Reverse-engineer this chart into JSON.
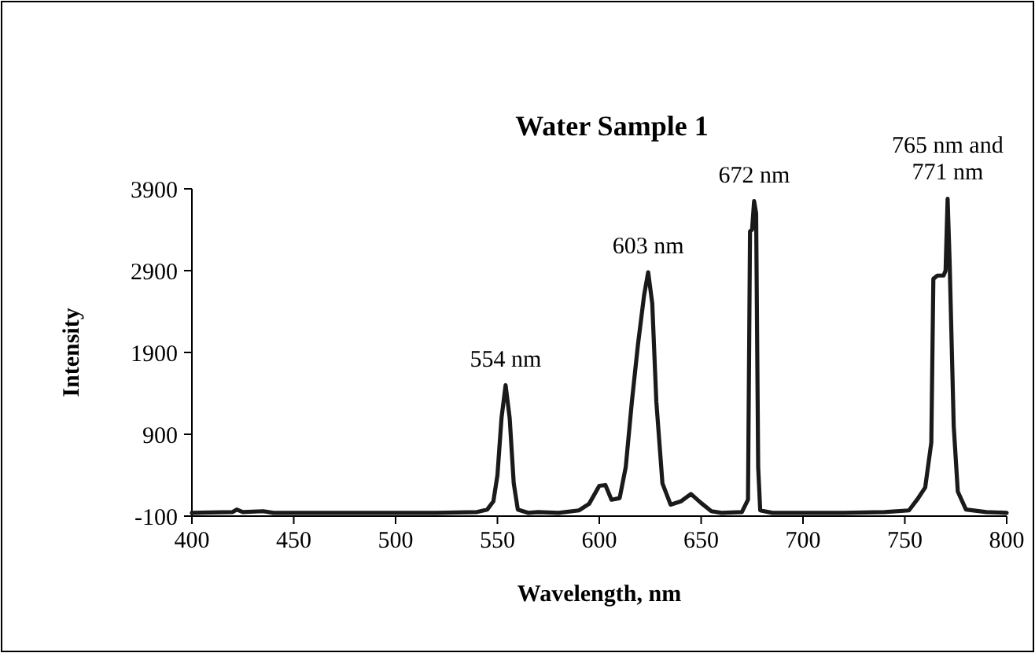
{
  "chart_data": {
    "type": "line",
    "title": "Water Sample 1",
    "xlabel": "Wavelength, nm",
    "ylabel": "Intensity",
    "xlim": [
      400,
      800
    ],
    "xticks": [
      400,
      450,
      500,
      550,
      600,
      650,
      700,
      750,
      800
    ],
    "ylim": [
      -100,
      3900
    ],
    "yticks": [
      -100,
      900,
      1900,
      2900,
      3900
    ],
    "grid": false,
    "marker": "none",
    "line_style": "solid",
    "series": [
      {
        "color": "#1a1a1a",
        "x": [
          400,
          420,
          422,
          425,
          435,
          440,
          460,
          480,
          500,
          520,
          540,
          545,
          548,
          550,
          552,
          554,
          556,
          558,
          560,
          565,
          570,
          580,
          590,
          595,
          600,
          603,
          606,
          610,
          613,
          616,
          619,
          622,
          624,
          626,
          628,
          631,
          635,
          640,
          645,
          650,
          655,
          660,
          670,
          673,
          674,
          675,
          676,
          677,
          678,
          679,
          685,
          700,
          720,
          740,
          752,
          756,
          760,
          763,
          764,
          766,
          769,
          770,
          771,
          772,
          774,
          776,
          780,
          790,
          800
        ],
        "values": [
          -60,
          -50,
          -20,
          -50,
          -40,
          -60,
          -60,
          -60,
          -60,
          -60,
          -50,
          -20,
          80,
          400,
          1100,
          1500,
          1100,
          300,
          -20,
          -60,
          -50,
          -60,
          -30,
          50,
          270,
          280,
          100,
          120,
          500,
          1300,
          2000,
          2600,
          2880,
          2500,
          1300,
          300,
          40,
          80,
          170,
          60,
          -40,
          -60,
          -50,
          100,
          3380,
          3400,
          3750,
          3600,
          500,
          -30,
          -60,
          -60,
          -60,
          -50,
          -30,
          100,
          250,
          800,
          2800,
          2840,
          2840,
          2900,
          3780,
          3000,
          1000,
          200,
          -20,
          -50,
          -60
        ]
      }
    ],
    "annotations": [
      {
        "text": "554 nm",
        "x": 554,
        "y": 1500
      },
      {
        "text": "603 nm",
        "x": 624,
        "y": 2880
      },
      {
        "text": "672 nm",
        "x": 676,
        "y": 3750
      },
      {
        "text": "765 nm and 771 nm",
        "x": 771,
        "y": 3780
      }
    ]
  }
}
